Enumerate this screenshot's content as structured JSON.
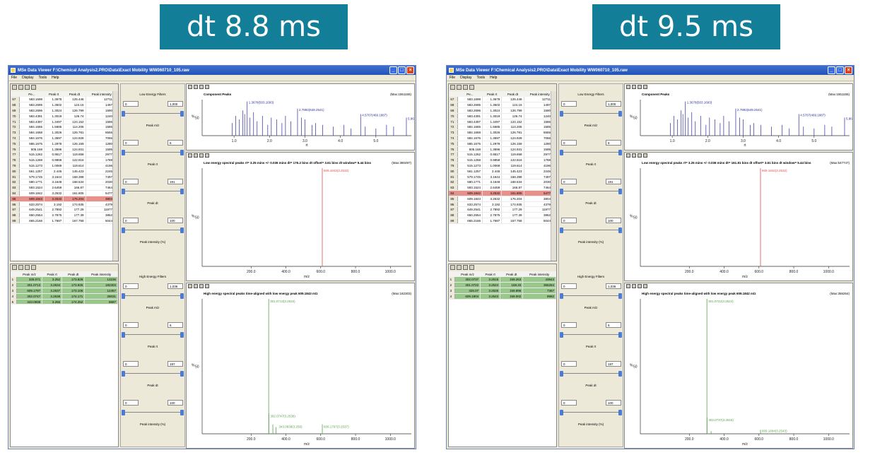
{
  "banners": {
    "left": "dt 8.8 ms",
    "right": "dt 9.5 ms"
  },
  "window": {
    "title": "MSe Data Viewer F:\\Chemical Analysis2.PRO\\Data\\Exact Mobility WW060710_105.raw",
    "menu": [
      "File",
      "Display",
      "Tools",
      "Help"
    ]
  },
  "low_table_headers": [
    "Pe...",
    "Peak rt",
    "Peak dt",
    "Peak intensity"
  ],
  "high_table_headers": [
    "Peak m/z",
    "Peak rt",
    "Peak dt",
    "Peak intensity"
  ],
  "filters": {
    "low_title": "Low Energy Filters",
    "high_title": "High Energy Filters",
    "mz_label": "Peak m/z",
    "rt_label": "Peak rt",
    "dt_label": "Peak dt",
    "int_label": "Peak intensity (%)"
  },
  "component_chart": {
    "title": "Component Peaks",
    "xticks": [
      "1.0",
      "2.0",
      "3.0",
      "4.0",
      "5.0"
    ],
    "xlabel": "rt",
    "labels": [
      "1.3678(503.1693)",
      "2.7892(649.2541)",
      "4.5707(469.1887)",
      "5.8626(265"
    ]
  },
  "axis": {
    "ylabel": "%",
    "y50": "50",
    "xlabel": "m/z"
  },
  "panels": [
    {
      "low_rows": [
        [
          "67",
          "583.1698",
          "1.3678",
          "125.446",
          "1271139"
        ],
        [
          "68",
          "583.2695",
          "1.3502",
          "124.15",
          "149765"
        ],
        [
          "69",
          "583.2696",
          "1.3024",
          "126.799",
          "159020"
        ],
        [
          "70",
          "583.4391",
          "1.3019",
          "126.74",
          "124051"
        ],
        [
          "71",
          "583.4397",
          "1.3497",
          "124.152",
          "158645"
        ],
        [
          "72",
          "584.1665",
          "1.5685",
          "114.205",
          "158538"
        ],
        [
          "73",
          "584.1668",
          "1.3026",
          "126.781",
          "655519"
        ],
        [
          "74",
          "584.1676",
          "1.3597",
          "124.928",
          "706626"
        ],
        [
          "75",
          "585.1675",
          "1.2978",
          "126.159",
          "128019"
        ],
        [
          "76",
          "505.168",
          "1.3596",
          "124.931",
          "159522"
        ],
        [
          "77",
          "515.1262",
          "0.9517",
          "119.658",
          "297745"
        ],
        [
          "78",
          "515.1268",
          "0.9858",
          "122.816",
          "178817"
        ],
        [
          "79",
          "515.1273",
          "1.0069",
          "119.614",
          "419680"
        ],
        [
          "80",
          "561.1257",
          "2.445",
          "145.423",
          "224538"
        ],
        [
          "81",
          "579.1745",
          "3.1644",
          "168.398",
          "749756"
        ],
        [
          "82",
          "580.1771",
          "3.1648",
          "168.534",
          "203020"
        ],
        [
          "83",
          "593.1524",
          "2.6459",
          "166.87",
          "746466"
        ],
        [
          "84",
          "609.1842",
          "3.2532",
          "161.805",
          "547747"
        ],
        [
          "85",
          "609.1843",
          "3.2532",
          "176.204",
          "380497"
        ],
        [
          "86",
          "633.2574",
          "3.192",
          "174.935",
          "437923"
        ],
        [
          "87",
          "649.2541",
          "2.7892",
          "177.29",
          "1197772"
        ],
        [
          "88",
          "650.2554",
          "2.7875",
          "177.39",
          "386290"
        ],
        [
          "89",
          "665.2166",
          "1.7687",
          "167.758",
          "504452"
        ]
      ],
      "selected_row": 18,
      "high_rows": [
        [
          "1",
          "325.071",
          "3.252",
          "173.828",
          "13236"
        ],
        [
          "2",
          "301.0713",
          "3.2534",
          "173.925",
          "182303"
        ],
        [
          "3",
          "609.1797",
          "3.2537",
          "173.106",
          "12457"
        ],
        [
          "4",
          "302.0747",
          "3.2538",
          "174.171",
          "28031"
        ],
        [
          "5",
          "343.0838",
          "3.256",
          "174.252",
          "8687"
        ]
      ],
      "filter_values": {
        "low": [
          "0",
          "1,000",
          "0",
          "6",
          "0",
          "191",
          "0",
          "100"
        ],
        "high": [
          "0",
          "1,036",
          "0",
          "6",
          "0",
          "197",
          "0",
          "100"
        ]
      },
      "low_chart": {
        "title": "Low energy spectral peaks rt= 3.25 mins +/- 0.036 mins dt= 176.2 bins dt offset= 3.61 bins dt window= 5.44 bins",
        "max": "(Max:380497)",
        "peak_label": "609.1843(3.2532)",
        "xticks": [
          "200.0",
          "400.0",
          "600.0",
          "800.0",
          "1000.0"
        ]
      },
      "high_chart": {
        "title": "High energy spectral peaks time-aligned with low energy peak 609.1843 m/z",
        "max": "(Max:182303)",
        "labels": [
          "301.0713(3.2534)",
          "302.0747(3.2538)",
          "343.0838(3.256)",
          "609.1797(3.2537)"
        ],
        "xticks": [
          "200.0",
          "400.0",
          "600.0",
          "800.0",
          "1000.0"
        ]
      },
      "comp_max": "(Max:1551155)"
    },
    {
      "low_rows": [
        [
          "67",
          "583.1698",
          "1.3678",
          "125.446",
          "1271139"
        ],
        [
          "68",
          "583.2695",
          "1.3502",
          "124.15",
          "149765"
        ],
        [
          "69",
          "583.2696",
          "1.3024",
          "126.799",
          "159020"
        ],
        [
          "70",
          "583.4391",
          "1.3019",
          "126.74",
          "124051"
        ],
        [
          "71",
          "583.4397",
          "1.3497",
          "124.152",
          "158645"
        ],
        [
          "72",
          "584.1665",
          "1.5685",
          "114.205",
          "158538"
        ],
        [
          "73",
          "584.1668",
          "1.3026",
          "126.781",
          "655519"
        ],
        [
          "74",
          "584.1676",
          "1.3597",
          "124.928",
          "706626"
        ],
        [
          "75",
          "585.1675",
          "1.2978",
          "126.159",
          "128019"
        ],
        [
          "76",
          "505.168",
          "1.3596",
          "124.931",
          "159522"
        ],
        [
          "77",
          "515.1262",
          "0.9517",
          "119.658",
          "297745"
        ],
        [
          "78",
          "515.1268",
          "0.9858",
          "122.816",
          "178817"
        ],
        [
          "79",
          "515.1273",
          "1.0069",
          "119.614",
          "419680"
        ],
        [
          "80",
          "561.1257",
          "2.445",
          "145.423",
          "224538"
        ],
        [
          "81",
          "579.1745",
          "3.1644",
          "168.398",
          "749756"
        ],
        [
          "82",
          "580.1771",
          "3.1648",
          "168.534",
          "203020"
        ],
        [
          "83",
          "593.1524",
          "2.6459",
          "166.87",
          "746466"
        ],
        [
          "84",
          "609.1842",
          "3.2532",
          "161.805",
          "547747"
        ],
        [
          "85",
          "609.1843",
          "3.2532",
          "176.204",
          "380497"
        ],
        [
          "86",
          "633.2574",
          "3.192",
          "174.935",
          "437923"
        ],
        [
          "87",
          "649.2541",
          "2.7892",
          "177.29",
          "1197772"
        ],
        [
          "88",
          "650.2554",
          "2.7875",
          "177.39",
          "386290"
        ],
        [
          "89",
          "665.2166",
          "1.7687",
          "167.758",
          "504452"
        ]
      ],
      "selected_row": 17,
      "high_rows": [
        [
          "1",
          "302.0737",
          "3.2515",
          "159.263",
          "43843"
        ],
        [
          "2",
          "301.0722",
          "3.2524",
          "159.33",
          "356264"
        ],
        [
          "3",
          "325.07",
          "3.2526",
          "159.896",
          "7367"
        ],
        [
          "4",
          "609.1804",
          "3.2543",
          "159.002",
          "9982"
        ]
      ],
      "filter_values": {
        "low": [
          "0",
          "1,000",
          "0",
          "6",
          "0",
          "191",
          "0",
          "100"
        ],
        "high": [
          "0",
          "1,036",
          "0",
          "6",
          "0",
          "197",
          "0",
          "100"
        ]
      },
      "low_chart": {
        "title": "Low energy spectral peaks rt= 3.25 mins +/- 0.036 mins dt= 161.81 bins dt offset= 3.61 bins dt window= 5.44 bins",
        "max": "(Max:547747)",
        "peak_label": "609.1842(3.2532)",
        "xticks": [
          "200.0",
          "400.0",
          "600.0",
          "800.0",
          "1000.0"
        ]
      },
      "high_chart": {
        "title": "High energy spectral peaks time-aligned with low energy peak 609.1842 m/z",
        "max": "(Max:356264)",
        "labels": [
          "301.0722(3.2524)",
          "302.0737(3.2515)",
          "609.1804(3.2543)"
        ],
        "xticks": [
          "200.0",
          "400.0",
          "600.0",
          "800.0",
          "1000.0"
        ]
      },
      "comp_max": "(Max:1551155)"
    }
  ]
}
